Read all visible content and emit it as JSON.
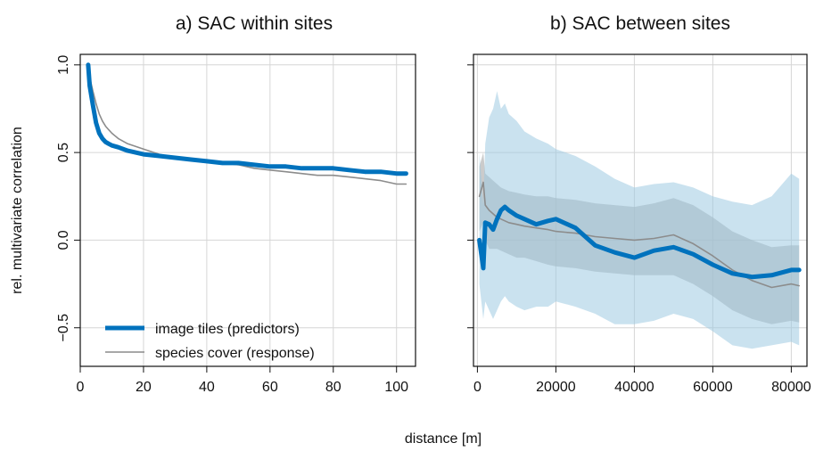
{
  "chart_data": [
    {
      "type": "line",
      "title": "a) SAC within sites",
      "xlabel": "distance [m]",
      "ylabel": "rel. multivariate correlation",
      "xlim": [
        0,
        106
      ],
      "ylim": [
        -0.72,
        1.06
      ],
      "xticks": [
        0,
        20,
        40,
        60,
        80,
        100
      ],
      "xtick_labels": [
        "0",
        "20",
        "40",
        "60",
        "80",
        "100"
      ],
      "yticks": [
        1.0,
        0.5,
        0.0,
        -0.5
      ],
      "ytick_labels": [
        "1.0",
        "0.5",
        "0.0",
        "−0.5"
      ],
      "grid": true,
      "legend_position": "bottom-left",
      "series": [
        {
          "name": "image tiles (predictors)",
          "color": "#0072BD",
          "x": [
            2.5,
            3,
            4,
            5,
            6,
            7,
            8,
            9,
            10,
            12,
            15,
            20,
            25,
            30,
            35,
            40,
            45,
            50,
            55,
            60,
            65,
            70,
            75,
            80,
            85,
            90,
            95,
            100,
            103
          ],
          "y": [
            1.0,
            0.88,
            0.77,
            0.67,
            0.61,
            0.58,
            0.56,
            0.55,
            0.54,
            0.53,
            0.51,
            0.49,
            0.48,
            0.47,
            0.46,
            0.45,
            0.44,
            0.44,
            0.43,
            0.42,
            0.42,
            0.41,
            0.41,
            0.41,
            0.4,
            0.39,
            0.39,
            0.38,
            0.38
          ]
        },
        {
          "name": "species cover (response)",
          "color": "#8c8c8c",
          "x": [
            2.5,
            3,
            4,
            5,
            6,
            7,
            8,
            9,
            10,
            12,
            15,
            20,
            25,
            30,
            35,
            40,
            45,
            50,
            55,
            60,
            65,
            70,
            75,
            80,
            85,
            90,
            95,
            100,
            103
          ],
          "y": [
            1.0,
            0.93,
            0.85,
            0.78,
            0.72,
            0.68,
            0.65,
            0.63,
            0.61,
            0.58,
            0.55,
            0.52,
            0.49,
            0.47,
            0.46,
            0.45,
            0.44,
            0.43,
            0.41,
            0.4,
            0.39,
            0.38,
            0.37,
            0.37,
            0.36,
            0.35,
            0.34,
            0.32,
            0.32
          ]
        }
      ]
    },
    {
      "type": "line",
      "title": "b) SAC between sites",
      "xlabel": "distance [m]",
      "xlim": [
        -1000,
        84000
      ],
      "ylim": [
        -0.72,
        1.06
      ],
      "xticks": [
        0,
        20000,
        40000,
        60000,
        80000
      ],
      "xtick_labels": [
        "0",
        "20000",
        "40000",
        "60000",
        "80000"
      ],
      "yticks": [
        1.0,
        0.5,
        0.0,
        -0.5
      ],
      "grid": true,
      "series": [
        {
          "name": "image tiles (predictors)",
          "color": "#0072BD",
          "band_color": "#9ecae1",
          "x": [
            500,
            1500,
            2000,
            3000,
            4000,
            5000,
            6000,
            7000,
            8000,
            10000,
            12000,
            15000,
            18000,
            20000,
            25000,
            30000,
            35000,
            40000,
            45000,
            50000,
            55000,
            60000,
            65000,
            70000,
            75000,
            80000,
            82000
          ],
          "y": [
            0.0,
            -0.16,
            0.1,
            0.09,
            0.06,
            0.12,
            0.17,
            0.19,
            0.17,
            0.14,
            0.12,
            0.09,
            0.11,
            0.12,
            0.07,
            -0.03,
            -0.07,
            -0.1,
            -0.06,
            -0.04,
            -0.08,
            -0.14,
            -0.19,
            -0.21,
            -0.2,
            -0.17,
            -0.17
          ],
          "lower": [
            -0.25,
            -0.45,
            -0.35,
            -0.4,
            -0.45,
            -0.4,
            -0.35,
            -0.32,
            -0.35,
            -0.38,
            -0.4,
            -0.38,
            -0.38,
            -0.35,
            -0.38,
            -0.42,
            -0.48,
            -0.48,
            -0.46,
            -0.42,
            -0.45,
            -0.52,
            -0.6,
            -0.62,
            -0.6,
            -0.58,
            -0.6
          ],
          "upper": [
            0.5,
            0.2,
            0.55,
            0.7,
            0.75,
            0.85,
            0.75,
            0.78,
            0.72,
            0.68,
            0.62,
            0.58,
            0.55,
            0.52,
            0.48,
            0.42,
            0.35,
            0.3,
            0.32,
            0.33,
            0.3,
            0.25,
            0.22,
            0.2,
            0.25,
            0.38,
            0.35
          ]
        },
        {
          "name": "species cover (response)",
          "color": "#8c8c8c",
          "band_color": "#a8a8a8",
          "x": [
            500,
            1500,
            2000,
            3000,
            4000,
            5000,
            6000,
            7000,
            8000,
            10000,
            12000,
            15000,
            18000,
            20000,
            25000,
            30000,
            35000,
            40000,
            45000,
            50000,
            55000,
            60000,
            65000,
            70000,
            75000,
            80000,
            82000
          ],
          "y": [
            0.25,
            0.33,
            0.2,
            0.17,
            0.15,
            0.13,
            0.12,
            0.11,
            0.1,
            0.09,
            0.08,
            0.07,
            0.06,
            0.05,
            0.04,
            0.02,
            0.01,
            0.0,
            0.01,
            0.03,
            -0.02,
            -0.09,
            -0.17,
            -0.23,
            -0.27,
            -0.25,
            -0.26
          ],
          "lower": [
            0.05,
            0.1,
            0.0,
            -0.05,
            -0.05,
            -0.05,
            -0.06,
            -0.07,
            -0.08,
            -0.1,
            -0.1,
            -0.12,
            -0.14,
            -0.15,
            -0.16,
            -0.18,
            -0.19,
            -0.2,
            -0.2,
            -0.2,
            -0.25,
            -0.32,
            -0.4,
            -0.45,
            -0.48,
            -0.46,
            -0.47
          ],
          "upper": [
            0.42,
            0.5,
            0.38,
            0.36,
            0.34,
            0.32,
            0.3,
            0.29,
            0.28,
            0.27,
            0.26,
            0.25,
            0.25,
            0.24,
            0.23,
            0.21,
            0.2,
            0.19,
            0.21,
            0.24,
            0.2,
            0.13,
            0.05,
            0.0,
            -0.04,
            -0.03,
            -0.03
          ]
        }
      ]
    }
  ]
}
